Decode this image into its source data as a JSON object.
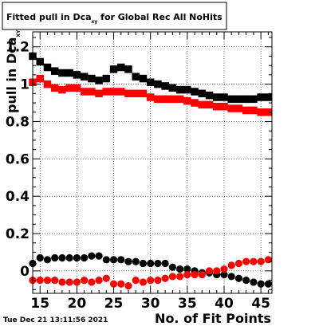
{
  "title": {
    "main": "Fitted pull in Dca",
    "sub": "xy",
    "rest": " for Global Rec All NoHits"
  },
  "date_stamp": "Tue Dec 21 13:11:56 2021",
  "colors": {
    "series_mean": "#000000",
    "series_width": "#ff0000",
    "frame": "#000000",
    "background": "#ffffff"
  },
  "chart_data": {
    "type": "scatter",
    "title": "Fitted pull in Dcaxy for Global Rec All NoHits",
    "xlabel": "No. of Fit Points",
    "ylabel": {
      "main": "pull in Dca",
      "sub": "XY"
    },
    "xlim": [
      14,
      46.5
    ],
    "ylim": [
      -0.12,
      1.28
    ],
    "grid": true,
    "legend": "none",
    "x_ticks": [
      15,
      20,
      25,
      30,
      35,
      40,
      45
    ],
    "y_ticks": [
      0,
      0.2,
      0.4,
      0.6,
      0.8,
      1,
      1.2
    ],
    "y_tick_labels": [
      "0",
      "0.2",
      "0.4",
      "0.6",
      "0.8",
      "1",
      "1.2"
    ],
    "x": [
      14,
      15,
      16,
      17,
      18,
      19,
      20,
      21,
      22,
      23,
      24,
      25,
      26,
      27,
      28,
      29,
      30,
      31,
      32,
      33,
      34,
      35,
      36,
      37,
      38,
      39,
      40,
      41,
      42,
      43,
      44,
      45,
      46
    ],
    "series": [
      {
        "marker": "square",
        "color": "#000000",
        "values": [
          1.15,
          1.12,
          1.09,
          1.07,
          1.06,
          1.06,
          1.05,
          1.04,
          1.03,
          1.02,
          1.03,
          1.08,
          1.09,
          1.08,
          1.04,
          1.03,
          1.01,
          1.0,
          0.99,
          0.98,
          0.97,
          0.97,
          0.96,
          0.95,
          0.94,
          0.93,
          0.93,
          0.92,
          0.92,
          0.92,
          0.92,
          0.93,
          0.93
        ]
      },
      {
        "marker": "square",
        "color": "#ff0000",
        "values": [
          1.01,
          1.03,
          1.0,
          0.98,
          0.97,
          0.98,
          0.98,
          0.96,
          0.96,
          0.95,
          0.96,
          0.96,
          0.96,
          0.95,
          0.95,
          0.95,
          0.93,
          0.92,
          0.92,
          0.92,
          0.92,
          0.91,
          0.9,
          0.89,
          0.89,
          0.88,
          0.88,
          0.87,
          0.87,
          0.86,
          0.86,
          0.85,
          0.85
        ]
      },
      {
        "marker": "circle",
        "color": "#000000",
        "values": [
          0.04,
          0.07,
          0.06,
          0.07,
          0.07,
          0.07,
          0.07,
          0.07,
          0.08,
          0.08,
          0.06,
          0.06,
          0.06,
          0.05,
          0.05,
          0.04,
          0.04,
          0.04,
          0.04,
          0.02,
          0.01,
          0.01,
          0.0,
          -0.01,
          -0.01,
          -0.02,
          -0.02,
          -0.03,
          -0.04,
          -0.05,
          -0.06,
          -0.07,
          -0.07
        ]
      },
      {
        "marker": "circle",
        "color": "#ff0000",
        "values": [
          -0.05,
          -0.05,
          -0.05,
          -0.05,
          -0.06,
          -0.06,
          -0.06,
          -0.05,
          -0.06,
          -0.05,
          -0.04,
          -0.07,
          -0.07,
          -0.08,
          -0.05,
          -0.06,
          -0.05,
          -0.05,
          -0.04,
          -0.03,
          -0.03,
          -0.02,
          -0.02,
          -0.02,
          0.0,
          0.0,
          0.01,
          0.03,
          0.04,
          0.05,
          0.05,
          0.05,
          0.06
        ]
      }
    ]
  }
}
